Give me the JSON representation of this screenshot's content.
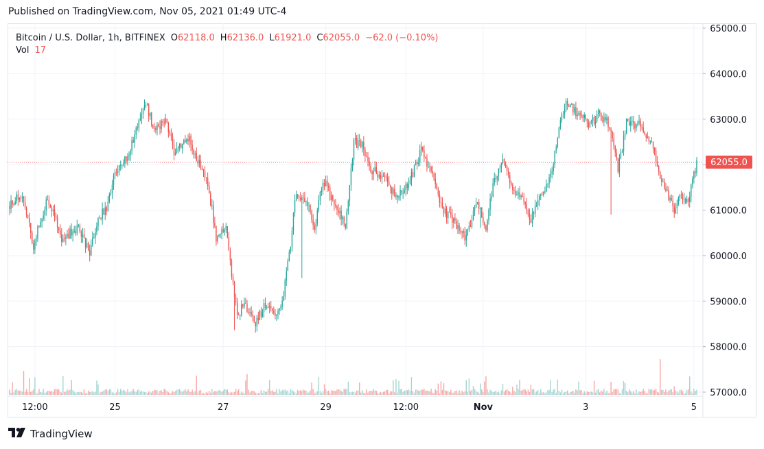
{
  "header": {
    "published": "Published on TradingView.com, Nov 05, 2021 01:49 UTC-4"
  },
  "legend": {
    "symbol": "Bitcoin / U.S. Dollar, 1h, BITFINEX",
    "open_label": "O",
    "open": "62118.0",
    "high_label": "H",
    "high": "62136.0",
    "low_label": "L",
    "low": "61921.0",
    "close_label": "C",
    "close": "62055.0",
    "change": "−62.0 (−0.10%)",
    "vol_label": "Vol",
    "vol": "17"
  },
  "footer": {
    "brand": "TradingView"
  },
  "colors": {
    "up": "#26a69a",
    "down": "#ef5350",
    "up_vol": "#a5d6d2",
    "down_vol": "#f7a9a7",
    "grid": "#f0f3fa",
    "axis_text": "#131722"
  },
  "chart_data": {
    "type": "candlestick",
    "symbol": "BTCUSD",
    "exchange": "BITFINEX",
    "interval": "1h",
    "last_price": "62055.0",
    "y_axis": {
      "ylim": [
        56950,
        65350
      ],
      "ticks": [
        "65000.0",
        "64000.0",
        "63000.0",
        "62000.0",
        "61000.0",
        "60000.0",
        "59000.0",
        "58000.0",
        "57000.0"
      ],
      "tick_values": [
        65000,
        64000,
        63000,
        62000,
        61000,
        60000,
        59000,
        58000,
        57000
      ]
    },
    "x_axis": {
      "ticks": [
        "12:00",
        "25",
        "27",
        "29",
        "12:00",
        "Nov",
        "3",
        "5"
      ],
      "bold_ticks": [
        "Nov"
      ],
      "tick_bar_index": [
        18,
        75,
        152,
        225,
        282,
        337,
        410,
        487
      ],
      "bar_count": 490
    },
    "anchors": [
      [
        0,
        61100
      ],
      [
        10,
        61350
      ],
      [
        18,
        60200
      ],
      [
        28,
        61300
      ],
      [
        38,
        60400
      ],
      [
        50,
        60600
      ],
      [
        58,
        60050
      ],
      [
        65,
        60900
      ],
      [
        70,
        61000
      ],
      [
        76,
        61800
      ],
      [
        85,
        62200
      ],
      [
        92,
        62800
      ],
      [
        98,
        63400
      ],
      [
        104,
        62700
      ],
      [
        112,
        63000
      ],
      [
        118,
        62300
      ],
      [
        128,
        62600
      ],
      [
        135,
        62100
      ],
      [
        142,
        61600
      ],
      [
        148,
        60400
      ],
      [
        155,
        60700
      ],
      [
        160,
        59300
      ],
      [
        163,
        58700
      ],
      [
        168,
        58900
      ],
      [
        176,
        58500
      ],
      [
        182,
        58900
      ],
      [
        190,
        58700
      ],
      [
        195,
        59000
      ],
      [
        200,
        60000
      ],
      [
        205,
        61400
      ],
      [
        212,
        61200
      ],
      [
        218,
        60600
      ],
      [
        224,
        61700
      ],
      [
        232,
        61100
      ],
      [
        240,
        60700
      ],
      [
        246,
        62500
      ],
      [
        252,
        62400
      ],
      [
        258,
        61900
      ],
      [
        268,
        61700
      ],
      [
        276,
        61300
      ],
      [
        284,
        61500
      ],
      [
        294,
        62300
      ],
      [
        302,
        61700
      ],
      [
        310,
        61000
      ],
      [
        318,
        60700
      ],
      [
        326,
        60400
      ],
      [
        334,
        61200
      ],
      [
        340,
        60500
      ],
      [
        345,
        61600
      ],
      [
        352,
        62100
      ],
      [
        360,
        61400
      ],
      [
        366,
        61300
      ],
      [
        372,
        60800
      ],
      [
        378,
        61300
      ],
      [
        386,
        61700
      ],
      [
        392,
        62800
      ],
      [
        398,
        63400
      ],
      [
        405,
        63100
      ],
      [
        414,
        62900
      ],
      [
        420,
        63100
      ],
      [
        428,
        62900
      ],
      [
        434,
        61900
      ],
      [
        440,
        62900
      ],
      [
        448,
        62900
      ],
      [
        456,
        62600
      ],
      [
        462,
        62000
      ],
      [
        468,
        61400
      ],
      [
        474,
        61000
      ],
      [
        478,
        61300
      ],
      [
        484,
        61200
      ],
      [
        490,
        62055
      ]
    ],
    "volume_scale_max": 40
  }
}
